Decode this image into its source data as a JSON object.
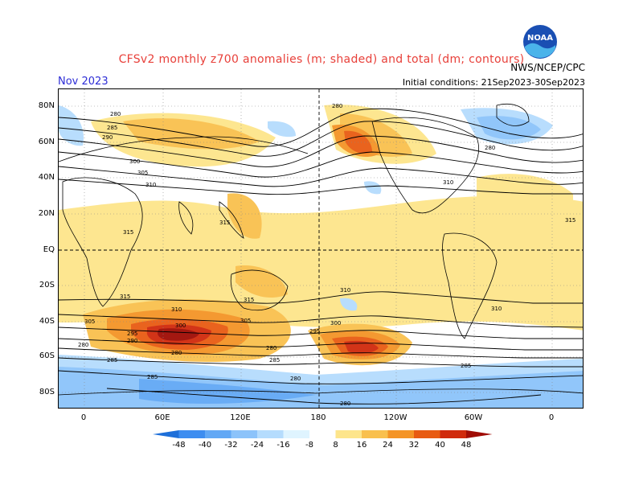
{
  "header": {
    "title": "CFSv2 monthly z700 anomalies (m; shaded) and total (dm; contours)",
    "month": "Nov 2023",
    "initial_conditions": "Initial conditions: 21Sep2023-30Sep2023",
    "agency": "NWS/NCEP/CPC",
    "logo_text": "NOAA"
  },
  "map": {
    "lat_labels": [
      {
        "label": "80N"
      },
      {
        "label": "60N"
      },
      {
        "label": "40N"
      },
      {
        "label": "20N"
      },
      {
        "label": "EQ"
      },
      {
        "label": "20S"
      },
      {
        "label": "40S"
      },
      {
        "label": "60S"
      },
      {
        "label": "80S"
      }
    ],
    "lon_labels": [
      {
        "label": "0"
      },
      {
        "label": "60E"
      },
      {
        "label": "120E"
      },
      {
        "label": "180"
      },
      {
        "label": "120W"
      },
      {
        "label": "60W"
      },
      {
        "label": "0"
      }
    ],
    "contour_labels": [
      "280",
      "285",
      "290",
      "295",
      "300",
      "305",
      "310",
      "315"
    ]
  },
  "colorbar": {
    "labels": [
      "-48",
      "-40",
      "-32",
      "-24",
      "-16",
      "-8",
      "8",
      "16",
      "24",
      "32",
      "40",
      "48"
    ],
    "colors": [
      "#1e6fd9",
      "#3d8df0",
      "#62a8f5",
      "#8cc3fa",
      "#b5dcfd",
      "#dff4ff",
      "#ffffff",
      "#fde58b",
      "#f9c04e",
      "#f49426",
      "#e85b12",
      "#d02a0c",
      "#a00c05"
    ]
  }
}
